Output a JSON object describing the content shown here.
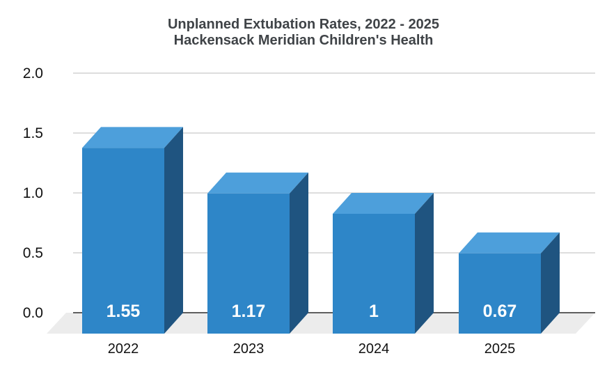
{
  "title": {
    "line1": "Unplanned Extubation Rates, 2022 - 2025",
    "line2": "Hackensack Meridian Children's Health"
  },
  "chart_data": {
    "type": "bar",
    "style": "3d-column",
    "title": "Unplanned Extubation Rates, 2022 - 2025 — Hackensack Meridian Children's Health",
    "categories": [
      "2022",
      "2023",
      "2024",
      "2025"
    ],
    "values": [
      1.55,
      1.17,
      1,
      0.67
    ],
    "value_labels": [
      "1.55",
      "1.17",
      "1",
      "0.67"
    ],
    "y_ticks": [
      "0.0",
      "0.5",
      "1.0",
      "1.5",
      "2.0"
    ],
    "y_tick_values": [
      0,
      0.5,
      1.0,
      1.5,
      2.0
    ],
    "ylim": [
      0,
      2.0
    ],
    "xlabel": "",
    "ylabel": "",
    "grid": true,
    "legend": "none",
    "colors": {
      "bar_front": "#2e86c8",
      "bar_top": "#4d9fdb",
      "bar_side": "#1f5480",
      "floor": "#ececec",
      "gridline": "#d2d2d2",
      "baseline": "#5f5f5f",
      "title_text": "#3f4347",
      "axis_text": "#111111",
      "value_text": "#ffffff",
      "background": "#ffffff"
    }
  }
}
